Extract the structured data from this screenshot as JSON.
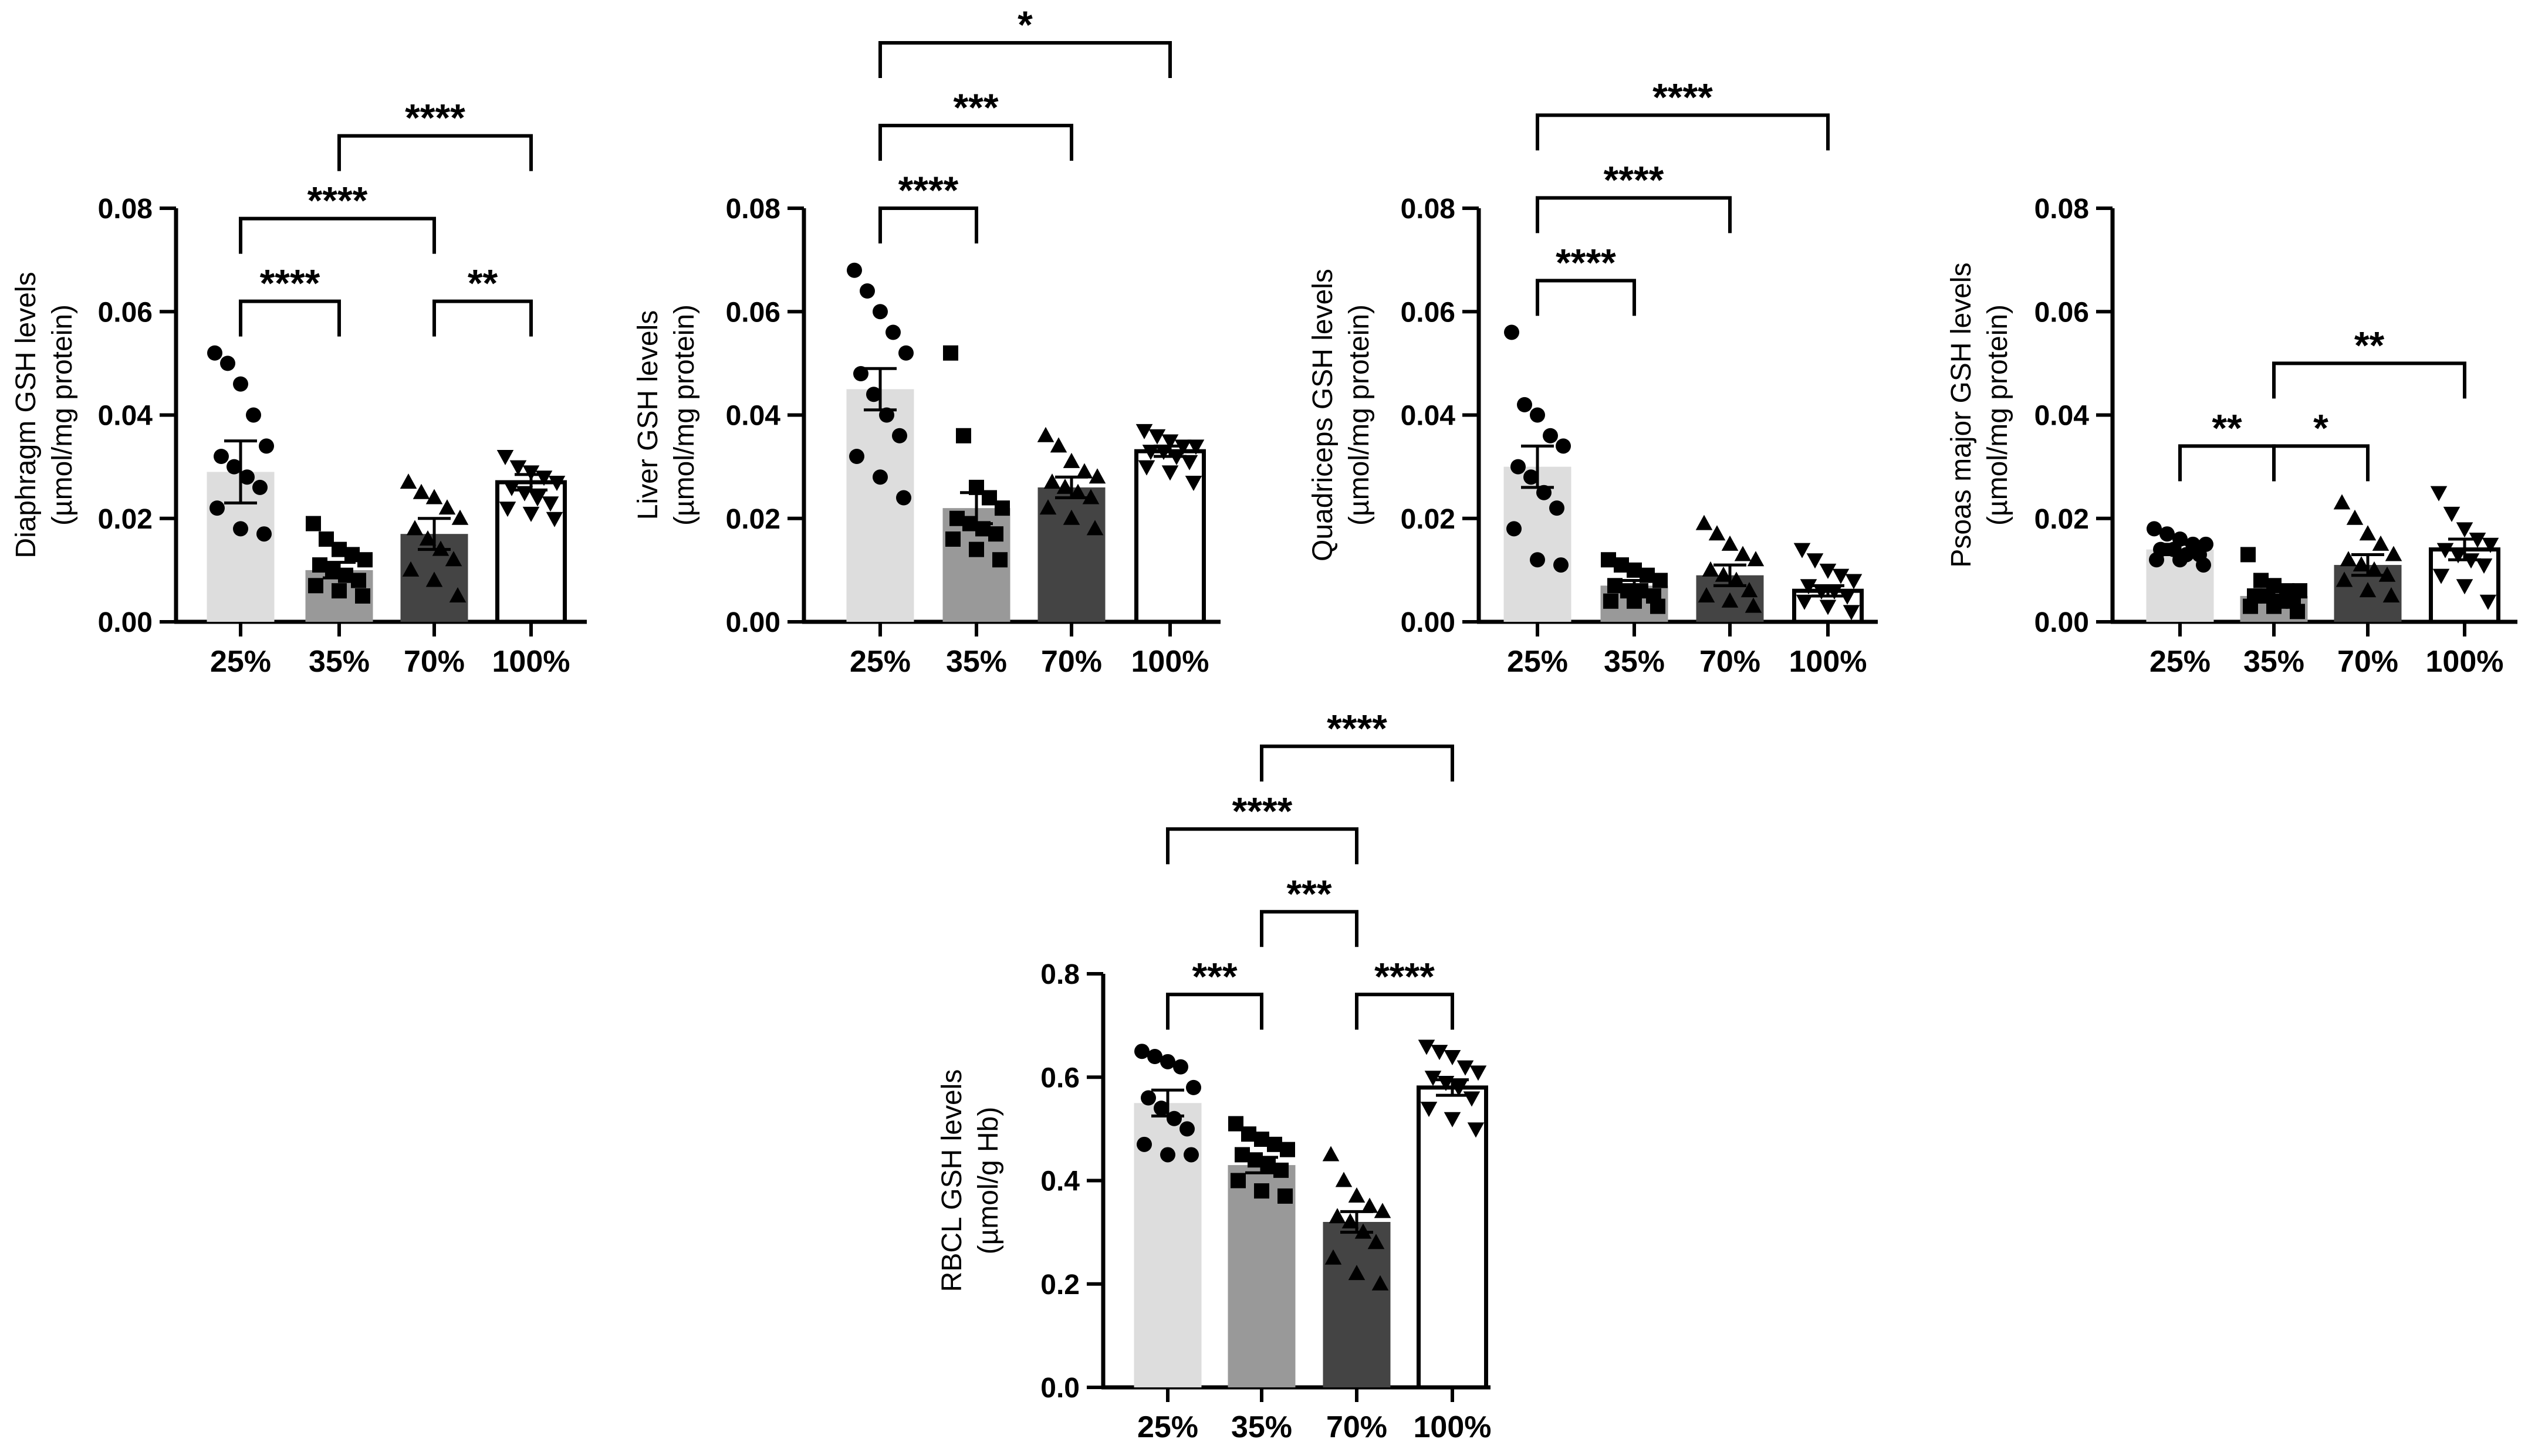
{
  "chart_data": [
    {
      "type": "bar",
      "title": "",
      "ylabel": [
        "Diaphragm GSH levels",
        "(µmol/mg protein)"
      ],
      "categories": [
        "25%",
        "35%",
        "70%",
        "100%"
      ],
      "values": [
        0.029,
        0.01,
        0.017,
        0.027
      ],
      "sem": [
        0.006,
        0.0015,
        0.003,
        0.0015
      ],
      "ylim": [
        0,
        0.08
      ],
      "yticks": [
        "0.00",
        "0.02",
        "0.04",
        "0.06",
        "0.08"
      ],
      "ytick_values": [
        0,
        0.02,
        0.04,
        0.06,
        0.08
      ],
      "points": [
        [
          0.052,
          0.05,
          0.046,
          0.04,
          0.034,
          0.032,
          0.03,
          0.028,
          0.026,
          0.022,
          0.018,
          0.017
        ],
        [
          0.019,
          0.016,
          0.014,
          0.013,
          0.012,
          0.011,
          0.01,
          0.009,
          0.008,
          0.007,
          0.006,
          0.005
        ],
        [
          0.027,
          0.025,
          0.024,
          0.022,
          0.02,
          0.018,
          0.016,
          0.014,
          0.012,
          0.01,
          0.008,
          0.005
        ],
        [
          0.032,
          0.03,
          0.029,
          0.028,
          0.027,
          0.026,
          0.025,
          0.024,
          0.023,
          0.022,
          0.021,
          0.02
        ]
      ],
      "comparisons": [
        {
          "from": 0,
          "to": 1,
          "label": "****",
          "y": 0.062
        },
        {
          "from": 2,
          "to": 3,
          "label": "**",
          "y": 0.062
        },
        {
          "from": 0,
          "to": 2,
          "label": "****",
          "y": 0.078
        },
        {
          "from": 1,
          "to": 3,
          "label": "****",
          "y": 0.094
        }
      ]
    },
    {
      "type": "bar",
      "title": "",
      "ylabel": [
        "Liver GSH levels",
        "(µmol/mg protein)"
      ],
      "categories": [
        "25%",
        "35%",
        "70%",
        "100%"
      ],
      "values": [
        0.045,
        0.022,
        0.026,
        0.033
      ],
      "sem": [
        0.004,
        0.003,
        0.002,
        0.001
      ],
      "ylim": [
        0,
        0.08
      ],
      "yticks": [
        "0.00",
        "0.02",
        "0.04",
        "0.06",
        "0.08"
      ],
      "ytick_values": [
        0,
        0.02,
        0.04,
        0.06,
        0.08
      ],
      "points": [
        [
          0.068,
          0.064,
          0.06,
          0.056,
          0.052,
          0.048,
          0.044,
          0.04,
          0.036,
          0.032,
          0.028,
          0.024
        ],
        [
          0.052,
          0.036,
          0.026,
          0.024,
          0.022,
          0.02,
          0.019,
          0.018,
          0.017,
          0.016,
          0.014,
          0.012
        ],
        [
          0.036,
          0.034,
          0.031,
          0.029,
          0.028,
          0.027,
          0.026,
          0.025,
          0.024,
          0.022,
          0.02,
          0.018
        ],
        [
          0.037,
          0.036,
          0.035,
          0.034,
          0.034,
          0.033,
          0.033,
          0.032,
          0.031,
          0.03,
          0.029,
          0.027
        ]
      ],
      "comparisons": [
        {
          "from": 0,
          "to": 1,
          "label": "****",
          "y": 0.08
        },
        {
          "from": 0,
          "to": 2,
          "label": "***",
          "y": 0.096
        },
        {
          "from": 0,
          "to": 3,
          "label": "*",
          "y": 0.112
        }
      ]
    },
    {
      "type": "bar",
      "title": "",
      "ylabel": [
        "Quadriceps GSH levels",
        "(µmol/mg protein)"
      ],
      "categories": [
        "25%",
        "35%",
        "70%",
        "100%"
      ],
      "values": [
        0.03,
        0.007,
        0.009,
        0.006
      ],
      "sem": [
        0.004,
        0.001,
        0.002,
        0.001
      ],
      "ylim": [
        0,
        0.08
      ],
      "yticks": [
        "0.00",
        "0.02",
        "0.04",
        "0.06",
        "0.08"
      ],
      "ytick_values": [
        0,
        0.02,
        0.04,
        0.06,
        0.08
      ],
      "points": [
        [
          0.056,
          0.042,
          0.04,
          0.036,
          0.034,
          0.03,
          0.028,
          0.025,
          0.022,
          0.018,
          0.012,
          0.011
        ],
        [
          0.012,
          0.011,
          0.01,
          0.009,
          0.008,
          0.007,
          0.006,
          0.006,
          0.005,
          0.004,
          0.004,
          0.003
        ],
        [
          0.019,
          0.017,
          0.015,
          0.013,
          0.012,
          0.01,
          0.009,
          0.008,
          0.006,
          0.005,
          0.004,
          0.003
        ],
        [
          0.014,
          0.012,
          0.01,
          0.009,
          0.008,
          0.007,
          0.006,
          0.006,
          0.005,
          0.004,
          0.003,
          0.002
        ]
      ],
      "comparisons": [
        {
          "from": 0,
          "to": 1,
          "label": "****",
          "y": 0.066
        },
        {
          "from": 0,
          "to": 2,
          "label": "****",
          "y": 0.082
        },
        {
          "from": 0,
          "to": 3,
          "label": "****",
          "y": 0.098
        }
      ]
    },
    {
      "type": "bar",
      "title": "",
      "ylabel": [
        "Psoas major GSH levels",
        "(µmol/mg protein)"
      ],
      "categories": [
        "25%",
        "35%",
        "70%",
        "100%"
      ],
      "values": [
        0.014,
        0.005,
        0.011,
        0.014
      ],
      "sem": [
        0.001,
        0.001,
        0.002,
        0.002
      ],
      "ylim": [
        0,
        0.08
      ],
      "yticks": [
        "0.00",
        "0.02",
        "0.04",
        "0.06",
        "0.08"
      ],
      "ytick_values": [
        0,
        0.02,
        0.04,
        0.06,
        0.08
      ],
      "points": [
        [
          0.018,
          0.017,
          0.016,
          0.015,
          0.015,
          0.014,
          0.014,
          0.013,
          0.013,
          0.012,
          0.012,
          0.011
        ],
        [
          0.013,
          0.008,
          0.007,
          0.006,
          0.006,
          0.005,
          0.005,
          0.004,
          0.004,
          0.003,
          0.003,
          0.002
        ],
        [
          0.023,
          0.02,
          0.017,
          0.015,
          0.013,
          0.012,
          0.011,
          0.01,
          0.009,
          0.008,
          0.006,
          0.005
        ],
        [
          0.025,
          0.021,
          0.018,
          0.016,
          0.015,
          0.014,
          0.013,
          0.012,
          0.011,
          0.009,
          0.007,
          0.004
        ]
      ],
      "comparisons": [
        {
          "from": 0,
          "to": 1,
          "label": "**",
          "y": 0.034
        },
        {
          "from": 1,
          "to": 2,
          "label": "*",
          "y": 0.034
        },
        {
          "from": 1,
          "to": 3,
          "label": "**",
          "y": 0.05
        }
      ]
    },
    {
      "type": "bar",
      "title": "",
      "ylabel": [
        "RBCL GSH levels",
        "(µmol/g Hb)"
      ],
      "categories": [
        "25%",
        "35%",
        "70%",
        "100%"
      ],
      "values": [
        0.55,
        0.43,
        0.32,
        0.58
      ],
      "sem": [
        0.025,
        0.015,
        0.02,
        0.015
      ],
      "ylim": [
        0,
        0.8
      ],
      "yticks": [
        "0.0",
        "0.2",
        "0.4",
        "0.6",
        "0.8"
      ],
      "ytick_values": [
        0,
        0.2,
        0.4,
        0.6,
        0.8
      ],
      "points": [
        [
          0.65,
          0.64,
          0.63,
          0.62,
          0.58,
          0.56,
          0.54,
          0.52,
          0.5,
          0.47,
          0.45,
          0.45
        ],
        [
          0.51,
          0.49,
          0.48,
          0.47,
          0.46,
          0.45,
          0.44,
          0.43,
          0.42,
          0.4,
          0.38,
          0.37
        ],
        [
          0.45,
          0.4,
          0.37,
          0.35,
          0.34,
          0.33,
          0.32,
          0.3,
          0.28,
          0.25,
          0.22,
          0.2
        ],
        [
          0.66,
          0.65,
          0.64,
          0.62,
          0.61,
          0.6,
          0.59,
          0.58,
          0.56,
          0.54,
          0.52,
          0.5
        ]
      ],
      "comparisons": [
        {
          "from": 0,
          "to": 1,
          "label": "***",
          "y": 0.76
        },
        {
          "from": 2,
          "to": 3,
          "label": "****",
          "y": 0.76
        },
        {
          "from": 1,
          "to": 2,
          "label": "***",
          "y": 0.92
        },
        {
          "from": 0,
          "to": 2,
          "label": "****",
          "y": 1.08
        },
        {
          "from": 1,
          "to": 3,
          "label": "****",
          "y": 1.24
        }
      ]
    }
  ],
  "style": {
    "bar_colors": [
      "#dddddd",
      "#999999",
      "#444444",
      "#ffffff"
    ],
    "marker_shapes": [
      "circle",
      "square",
      "triangle-up",
      "triangle-down"
    ],
    "marker_color": "#000000",
    "axis_color": "#000000"
  }
}
